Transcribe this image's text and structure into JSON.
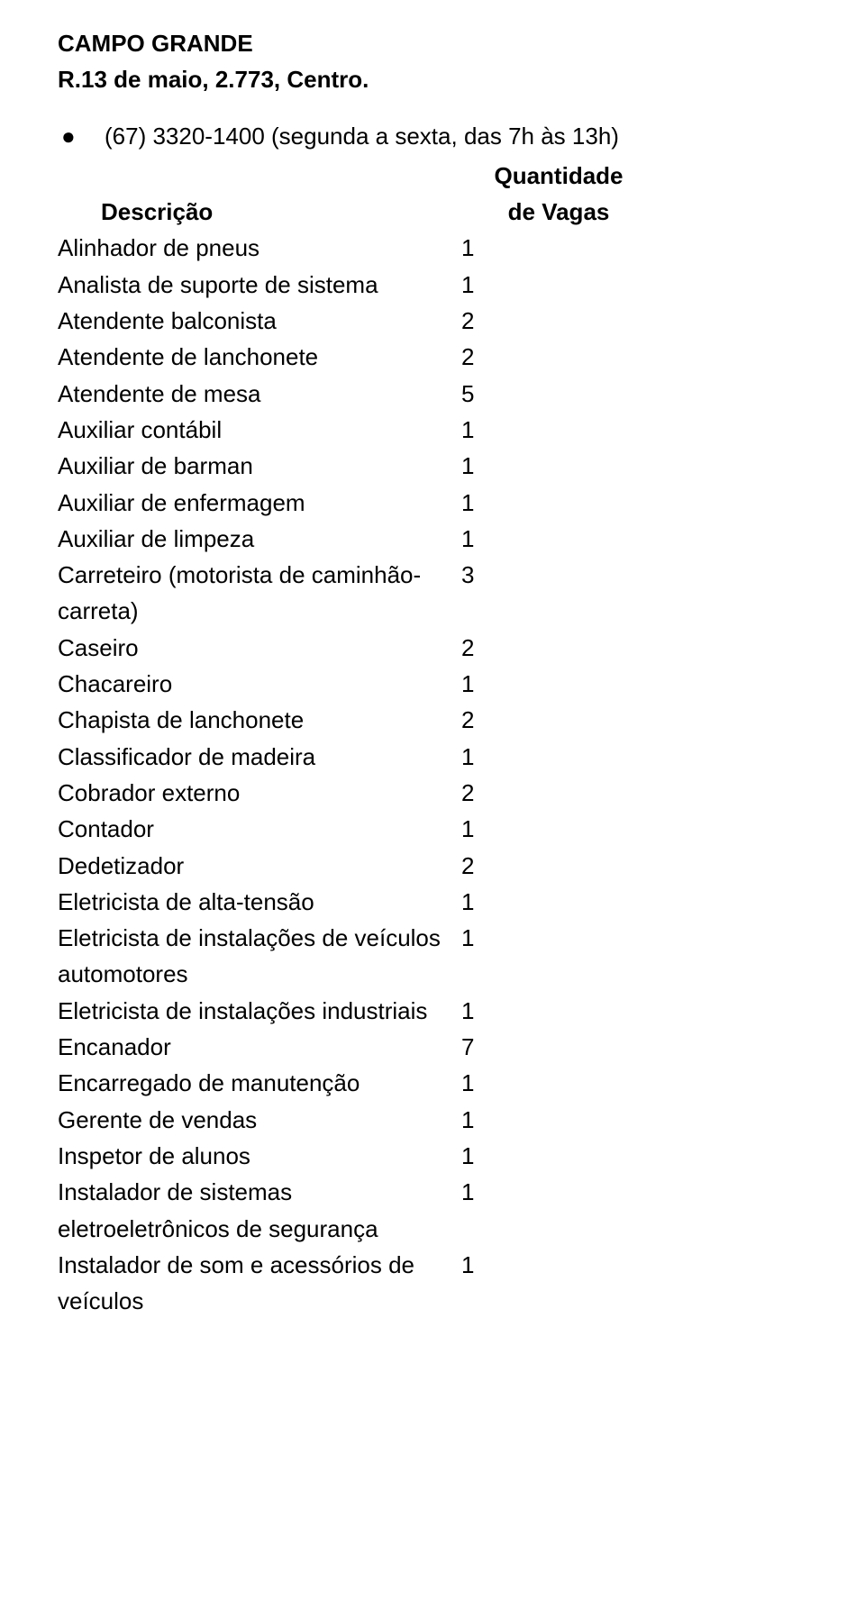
{
  "colors": {
    "text": "#000000",
    "background": "#ffffff"
  },
  "font": {
    "family": "Verdana",
    "heading_size_pt": 20,
    "body_size_pt": 20,
    "heading_weight": "700",
    "body_weight": "400"
  },
  "heading": "CAMPO GRANDE",
  "subheading": "R.13 de maio, 2.773, Centro.",
  "bullet_glyph": "●",
  "phone_line": "(67) 3320-1400 (segunda a sexta, das 7h às 13h)",
  "table": {
    "header_description": "Descrição",
    "header_quantity_line1": "Quantidade",
    "header_quantity_line2": "de Vagas",
    "rows": [
      {
        "label": "Alinhador de pneus",
        "value": "1"
      },
      {
        "label": "Analista de suporte de sistema",
        "value": "1"
      },
      {
        "label": "Atendente balconista",
        "value": "2"
      },
      {
        "label": "Atendente de lanchonete",
        "value": "2"
      },
      {
        "label": "Atendente de mesa",
        "value": "5"
      },
      {
        "label": "Auxiliar contábil",
        "value": "1"
      },
      {
        "label": "Auxiliar de barman",
        "value": "1"
      },
      {
        "label": "Auxiliar de enfermagem",
        "value": "1"
      },
      {
        "label": "Auxiliar de limpeza",
        "value": "1"
      },
      {
        "label": "Carreteiro (motorista de caminhão-carreta)",
        "value": "3"
      },
      {
        "label": "Caseiro",
        "value": "2"
      },
      {
        "label": "Chacareiro",
        "value": "1"
      },
      {
        "label": "Chapista de lanchonete",
        "value": "2"
      },
      {
        "label": "Classificador de madeira",
        "value": "1"
      },
      {
        "label": "Cobrador externo",
        "value": "2"
      },
      {
        "label": "Contador",
        "value": "1"
      },
      {
        "label": "Dedetizador",
        "value": "2"
      },
      {
        "label": "Eletricista de alta-tensão",
        "value": "1"
      },
      {
        "label": "Eletricista de instalações de veículos automotores",
        "value": "1"
      },
      {
        "label": "Eletricista de instalações industriais",
        "value": "1"
      },
      {
        "label": "Encanador",
        "value": "7"
      },
      {
        "label": "Encarregado de manutenção",
        "value": "1"
      },
      {
        "label": "Gerente de vendas",
        "value": "1"
      },
      {
        "label": "Inspetor de alunos",
        "value": "1"
      },
      {
        "label": "Instalador de sistemas eletroeletrônicos de segurança",
        "value": "1"
      },
      {
        "label": "Instalador de som e acessórios de veículos",
        "value": "1"
      }
    ]
  }
}
